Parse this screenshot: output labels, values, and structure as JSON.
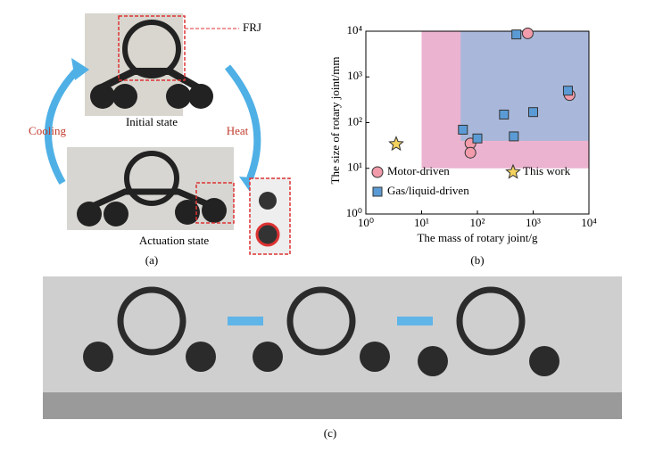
{
  "panel_a": {
    "callout": "FRJ",
    "initial_label": "Initial state",
    "cooling_label": "Cooling",
    "heat_label": "Heat",
    "actuation_label": "Actuation state",
    "panel_label": "(a)"
  },
  "chart_data": {
    "type": "scatter",
    "x_label": "The mass of rotary joint/g",
    "y_label": "The size of rotary joint/mm",
    "panel_label": "(b)",
    "log_x": true,
    "log_y": true,
    "xlim": [
      1,
      10000
    ],
    "ylim": [
      1,
      10000
    ],
    "xticks": [
      {
        "value": 1,
        "label": "10⁰"
      },
      {
        "value": 10,
        "label": "10¹"
      },
      {
        "value": 100,
        "label": "10²"
      },
      {
        "value": 1000,
        "label": "10³"
      },
      {
        "value": 10000,
        "label": "10⁴"
      }
    ],
    "yticks": [
      {
        "value": 1,
        "label": "10⁰"
      },
      {
        "value": 10,
        "label": "10¹"
      },
      {
        "value": 100,
        "label": "10²"
      },
      {
        "value": 1000,
        "label": "10³"
      },
      {
        "value": 10000,
        "label": "10⁴"
      }
    ],
    "regions": [
      {
        "color": "#e7a6c7",
        "x": [
          10,
          10000
        ],
        "y": [
          10,
          10000
        ]
      },
      {
        "color": "#9db8dc",
        "x": [
          50,
          10000
        ],
        "y": [
          40,
          10000
        ]
      }
    ],
    "series": [
      {
        "name": "Motor-driven",
        "color": "#f29bab",
        "marker": "circle",
        "x": [
          800,
          75,
          75,
          4500
        ],
        "values": [
          9000,
          35,
          22,
          400
        ]
      },
      {
        "name": "Gas/liquid-driven",
        "color": "#5b9bd5",
        "marker": "square",
        "x": [
          500,
          55,
          100,
          300,
          1000,
          450,
          4200
        ],
        "values": [
          8500,
          70,
          45,
          150,
          170,
          50,
          500
        ]
      },
      {
        "name": "This work",
        "color": "#f4d35e",
        "marker": "star",
        "x": [
          3.5
        ],
        "values": [
          34
        ]
      }
    ]
  },
  "panel_c": {
    "panel_label": "(c)"
  }
}
